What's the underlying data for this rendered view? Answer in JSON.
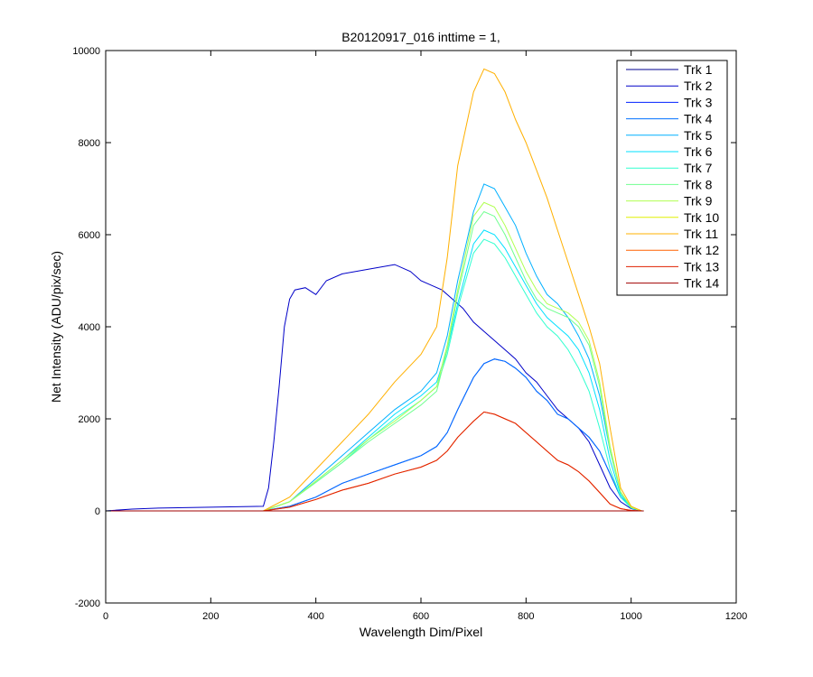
{
  "chart_data": {
    "type": "line",
    "title": "B20120917_016 inttime = 1,",
    "xlabel": "Wavelength Dim/Pixel",
    "ylabel": "Net Intensity (ADU/pix/sec)",
    "xlim": [
      0,
      1200
    ],
    "ylim": [
      -2000,
      10000
    ],
    "xticks": [
      0,
      200,
      400,
      600,
      800,
      1000,
      1200
    ],
    "yticks": [
      -2000,
      0,
      2000,
      4000,
      6000,
      8000,
      10000
    ],
    "xtick_labels": [
      "0",
      "200",
      "400",
      "600",
      "800",
      "1000",
      "1200"
    ],
    "ytick_labels": [
      "-2000",
      "0",
      "2000",
      "4000",
      "6000",
      "8000",
      "10000"
    ],
    "grid": false,
    "legend_position": "top-right",
    "series": [
      {
        "name": "Trk 1",
        "color": "#00008F",
        "x": [
          0,
          1024
        ],
        "y": [
          0,
          0
        ]
      },
      {
        "name": "Trk 2",
        "color": "#0000C8",
        "x": [
          0,
          50,
          100,
          150,
          200,
          250,
          300,
          310,
          320,
          330,
          340,
          350,
          360,
          380,
          400,
          420,
          450,
          500,
          550,
          580,
          600,
          620,
          640,
          660,
          680,
          700,
          720,
          740,
          760,
          780,
          800,
          820,
          840,
          860,
          880,
          900,
          920,
          940,
          960,
          980,
          1000,
          1020
        ],
        "y": [
          0,
          40,
          60,
          70,
          80,
          90,
          100,
          500,
          1500,
          2700,
          4000,
          4600,
          4800,
          4850,
          4700,
          5000,
          5150,
          5250,
          5350,
          5200,
          5000,
          4900,
          4800,
          4600,
          4400,
          4100,
          3900,
          3700,
          3500,
          3300,
          3000,
          2800,
          2500,
          2200,
          2000,
          1800,
          1500,
          1000,
          500,
          200,
          50,
          0
        ]
      },
      {
        "name": "Trk 3",
        "color": "#0020FF",
        "x": [
          0,
          300,
          350,
          400,
          450,
          500,
          550,
          600,
          630,
          650,
          670,
          700,
          720,
          740,
          760,
          780,
          800,
          820,
          840,
          860,
          880,
          900,
          920,
          940,
          960,
          980,
          1000,
          1020
        ],
        "y": [
          0,
          0,
          100,
          300,
          600,
          800,
          1000,
          1200,
          1400,
          1700,
          2200,
          2900,
          3200,
          3300,
          3250,
          3100,
          2900,
          2600,
          2400,
          2100,
          2000,
          1800,
          1600,
          1300,
          800,
          300,
          80,
          0
        ]
      },
      {
        "name": "Trk 4",
        "color": "#0070FF",
        "x": [
          0,
          300,
          350,
          400,
          450,
          500,
          550,
          600,
          630,
          650,
          670,
          700,
          720,
          740,
          760,
          780,
          800,
          820,
          840,
          860,
          880,
          900,
          920,
          940,
          960,
          980,
          1000,
          1020
        ],
        "y": [
          0,
          0,
          100,
          300,
          600,
          800,
          1000,
          1200,
          1400,
          1700,
          2200,
          2900,
          3200,
          3300,
          3250,
          3100,
          2900,
          2600,
          2400,
          2100,
          2000,
          1800,
          1600,
          1300,
          800,
          300,
          80,
          0
        ]
      },
      {
        "name": "Trk 5",
        "color": "#00B0FF",
        "x": [
          0,
          300,
          350,
          400,
          450,
          500,
          550,
          600,
          630,
          650,
          670,
          700,
          720,
          740,
          760,
          780,
          800,
          820,
          840,
          860,
          880,
          900,
          920,
          940,
          960,
          980,
          1000,
          1020
        ],
        "y": [
          0,
          0,
          200,
          700,
          1200,
          1700,
          2200,
          2600,
          3000,
          3800,
          5000,
          6500,
          7100,
          7000,
          6600,
          6200,
          5600,
          5100,
          4700,
          4500,
          4200,
          3800,
          3300,
          2500,
          1300,
          400,
          80,
          0
        ]
      },
      {
        "name": "Trk 6",
        "color": "#00E0FF",
        "x": [
          0,
          300,
          350,
          400,
          450,
          500,
          550,
          600,
          630,
          650,
          670,
          700,
          720,
          740,
          760,
          780,
          800,
          820,
          840,
          860,
          880,
          900,
          920,
          940,
          960,
          980,
          1000,
          1020
        ],
        "y": [
          0,
          0,
          200,
          650,
          1100,
          1600,
          2100,
          2500,
          2800,
          3500,
          4500,
          5800,
          6100,
          6000,
          5700,
          5300,
          4900,
          4500,
          4200,
          4000,
          3800,
          3500,
          3000,
          2200,
          1100,
          350,
          70,
          0
        ]
      },
      {
        "name": "Trk 7",
        "color": "#30FFD0",
        "x": [
          0,
          300,
          350,
          400,
          450,
          500,
          550,
          600,
          630,
          650,
          670,
          700,
          720,
          740,
          760,
          780,
          800,
          820,
          840,
          860,
          880,
          900,
          920,
          940,
          960,
          980,
          1000,
          1020
        ],
        "y": [
          0,
          0,
          200,
          620,
          1050,
          1550,
          2000,
          2400,
          2700,
          3400,
          4400,
          5600,
          5900,
          5800,
          5500,
          5100,
          4700,
          4300,
          4000,
          3800,
          3500,
          3100,
          2600,
          1800,
          900,
          300,
          60,
          0
        ]
      },
      {
        "name": "Trk 8",
        "color": "#70FF90",
        "x": [
          0,
          300,
          350,
          400,
          450,
          500,
          550,
          600,
          630,
          650,
          670,
          700,
          720,
          740,
          760,
          780,
          800,
          820,
          840,
          860,
          880,
          900,
          920,
          940,
          960,
          980,
          1000,
          1020
        ],
        "y": [
          0,
          0,
          200,
          620,
          1050,
          1500,
          1900,
          2300,
          2600,
          3500,
          4700,
          6200,
          6500,
          6400,
          6000,
          5500,
          5000,
          4600,
          4400,
          4300,
          4200,
          4000,
          3600,
          2700,
          1300,
          400,
          80,
          0
        ]
      },
      {
        "name": "Trk 9",
        "color": "#B0FF50",
        "x": [
          0,
          300,
          350,
          400,
          450,
          500,
          550,
          600,
          630,
          650,
          670,
          700,
          720,
          740,
          760,
          780,
          800,
          820,
          840,
          860,
          880,
          900,
          920,
          940,
          960,
          980,
          1000,
          1020
        ],
        "y": [
          0,
          0,
          200,
          650,
          1100,
          1550,
          1950,
          2400,
          2700,
          3600,
          4800,
          6400,
          6700,
          6600,
          6200,
          5700,
          5200,
          4800,
          4500,
          4400,
          4300,
          4100,
          3700,
          2800,
          1400,
          420,
          80,
          0
        ]
      },
      {
        "name": "Trk 10",
        "color": "#E0F000",
        "x": [
          0,
          1024
        ],
        "y": [
          0,
          0
        ]
      },
      {
        "name": "Trk 11",
        "color": "#FFB000",
        "x": [
          0,
          300,
          350,
          400,
          450,
          500,
          550,
          600,
          630,
          650,
          670,
          700,
          720,
          740,
          760,
          780,
          800,
          820,
          840,
          860,
          880,
          900,
          920,
          940,
          960,
          980,
          1000,
          1020
        ],
        "y": [
          0,
          0,
          300,
          900,
          1500,
          2100,
          2800,
          3400,
          4000,
          5500,
          7500,
          9100,
          9600,
          9500,
          9100,
          8500,
          8000,
          7400,
          6800,
          6100,
          5400,
          4700,
          4000,
          3200,
          1800,
          500,
          100,
          0
        ]
      },
      {
        "name": "Trk 12",
        "color": "#FF6000",
        "x": [
          0,
          300,
          350,
          400,
          450,
          500,
          550,
          600,
          630,
          650,
          670,
          700,
          720,
          740,
          760,
          780,
          800,
          820,
          840,
          860,
          880,
          900,
          920,
          940,
          960,
          980,
          1000,
          1020
        ],
        "y": [
          0,
          0,
          80,
          250,
          450,
          600,
          800,
          950,
          1100,
          1300,
          1600,
          1950,
          2150,
          2100,
          2000,
          1900,
          1700,
          1500,
          1300,
          1100,
          1000,
          850,
          650,
          400,
          150,
          50,
          10,
          0
        ]
      },
      {
        "name": "Trk 13",
        "color": "#E02000",
        "x": [
          0,
          300,
          350,
          400,
          450,
          500,
          550,
          600,
          630,
          650,
          670,
          700,
          720,
          740,
          760,
          780,
          800,
          820,
          840,
          860,
          880,
          900,
          920,
          940,
          960,
          980,
          1000,
          1020
        ],
        "y": [
          0,
          0,
          80,
          250,
          450,
          600,
          800,
          950,
          1100,
          1300,
          1600,
          1950,
          2150,
          2100,
          2000,
          1900,
          1700,
          1500,
          1300,
          1100,
          1000,
          850,
          650,
          400,
          150,
          50,
          10,
          0
        ]
      },
      {
        "name": "Trk 14",
        "color": "#A00000",
        "x": [
          0,
          1024
        ],
        "y": [
          0,
          0
        ]
      }
    ]
  }
}
